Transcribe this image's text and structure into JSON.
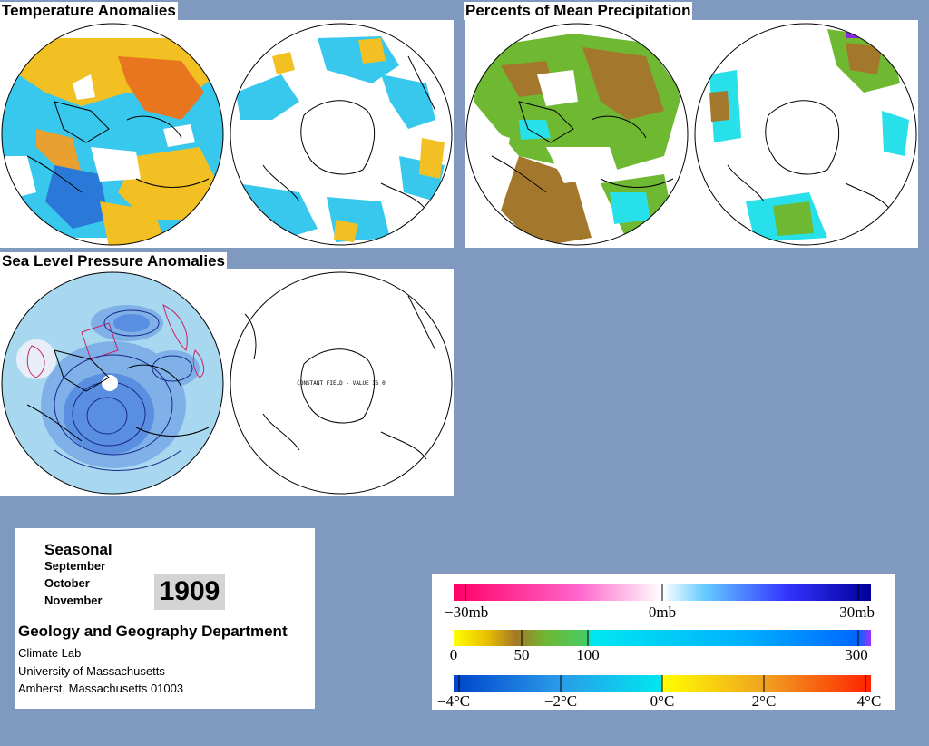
{
  "panels": {
    "temperature": {
      "title": "Temperature Anomalies"
    },
    "precipitation": {
      "title": "Percents of Mean Precipitation"
    },
    "pressure": {
      "title": "Sea Level Pressure Anomalies",
      "note": "CONSTANT FIELD - VALUE IS 0"
    }
  },
  "info": {
    "season": "Seasonal",
    "months": [
      "September",
      "October",
      "November"
    ],
    "year": "1909",
    "department": "Geology and Geography Department",
    "address": [
      "Climate Lab",
      "University of Massachusetts",
      "Amherst, Massachusetts 01003"
    ]
  },
  "legend": {
    "pressure": {
      "labels": [
        "−30mb",
        "0mb",
        "30mb"
      ]
    },
    "precipitation": {
      "labels": [
        "0",
        "50",
        "100",
        "300"
      ]
    },
    "temperature": {
      "labels": [
        "−4°C",
        "−2°C",
        "0°C",
        "2°C",
        "4°C"
      ]
    }
  },
  "colors": {
    "background": "#7f99bf",
    "warm": "#f2c022",
    "hot": "#e8761e",
    "cool": "#38c8ee",
    "cold": "#2a78d8",
    "dry": "#a4782c",
    "moist": "#6fb832",
    "wet": "#28e0ea"
  }
}
